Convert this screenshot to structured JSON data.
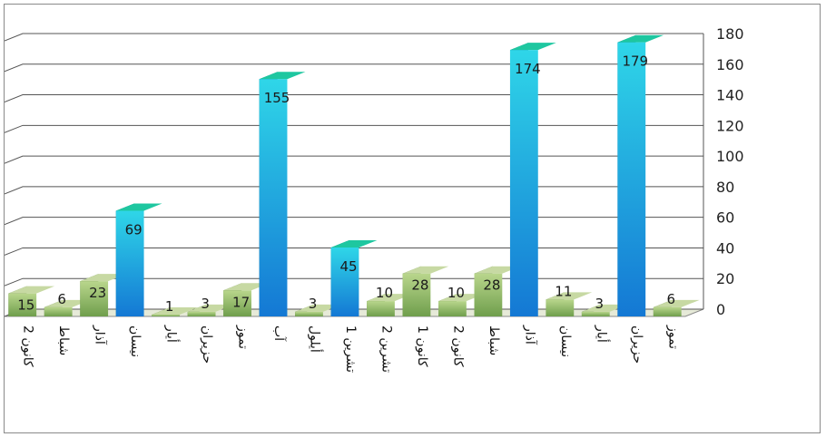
{
  "chart_data": {
    "type": "bar",
    "categories": [
      "كانون 2",
      "شباط",
      "آذار",
      "نيسان",
      "أيار",
      "حزيران",
      "تموز",
      "آب",
      "أيلول",
      "تشرين 1",
      "تشرين 2",
      "كانون 1",
      "كانون 2",
      "شباط",
      "آذار",
      "نيسان",
      "أيار",
      "حزيران",
      "تموز"
    ],
    "series": [
      {
        "values": [
          15,
          6,
          23,
          69,
          1,
          3,
          17,
          155,
          3,
          45,
          10,
          28,
          10,
          28,
          174,
          11,
          3,
          179,
          6
        ],
        "labels": [
          "15",
          "6",
          "23",
          "69",
          "1",
          "3",
          "17",
          "155",
          "3",
          "45",
          "10",
          "28",
          "10",
          "28",
          "174",
          "11",
          "3",
          "179",
          "6"
        ]
      }
    ],
    "yticks": [
      "0",
      "20",
      "40",
      "60",
      "80",
      "100",
      "120",
      "140",
      "160",
      "180"
    ],
    "ylim": [
      0,
      180
    ],
    "grid": true,
    "colors": {
      "green_front": "#8fb872",
      "green_top": "#c7d9a3",
      "green_side": "#4f7a38",
      "blue_front": "#1fa8e6",
      "blue_top": "#1ec7a0",
      "blue_side": "#0b6f86",
      "grid": "#555555"
    }
  }
}
